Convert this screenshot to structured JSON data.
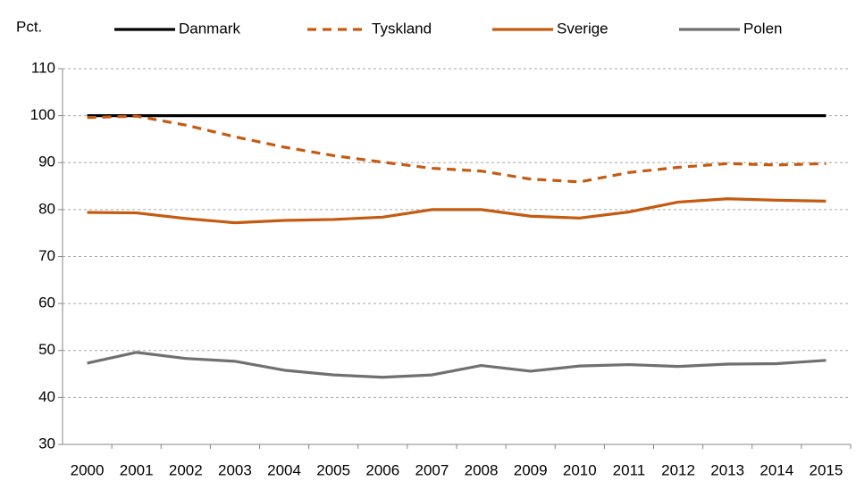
{
  "chart_data": {
    "type": "line",
    "y_label": "Pct.",
    "categories": [
      "2000",
      "2001",
      "2002",
      "2003",
      "2004",
      "2005",
      "2006",
      "2007",
      "2008",
      "2009",
      "2010",
      "2011",
      "2012",
      "2013",
      "2014",
      "2015"
    ],
    "series": [
      {
        "name": "Danmark",
        "color": "#000000",
        "dashed": false,
        "values": [
          100,
          100,
          100,
          100,
          100,
          100,
          100,
          100,
          100,
          100,
          100,
          100,
          100,
          100,
          100,
          100
        ]
      },
      {
        "name": "Tyskland",
        "color": "#c55a11",
        "dashed": true,
        "values": [
          99.6,
          99.9,
          98,
          95.5,
          93.3,
          91.5,
          90.1,
          88.8,
          88.2,
          86.5,
          85.9,
          87.9,
          89,
          89.8,
          89.5,
          89.8
        ]
      },
      {
        "name": "Sverige",
        "color": "#c55a11",
        "dashed": false,
        "values": [
          79.4,
          79.3,
          78.1,
          77.2,
          77.7,
          77.9,
          78.4,
          80,
          80,
          78.6,
          78.2,
          79.5,
          81.6,
          82.3,
          82,
          81.8
        ]
      },
      {
        "name": "Polen",
        "color": "#707070",
        "dashed": false,
        "values": [
          47.3,
          49.6,
          48.3,
          47.7,
          45.8,
          44.8,
          44.3,
          44.8,
          46.8,
          45.6,
          46.7,
          47,
          46.6,
          47.1,
          47.2,
          47.9
        ]
      }
    ],
    "ylim": [
      30,
      110
    ],
    "yticks": [
      30,
      40,
      50,
      60,
      70,
      80,
      90,
      100,
      110
    ],
    "grid": true,
    "legend": "top"
  }
}
